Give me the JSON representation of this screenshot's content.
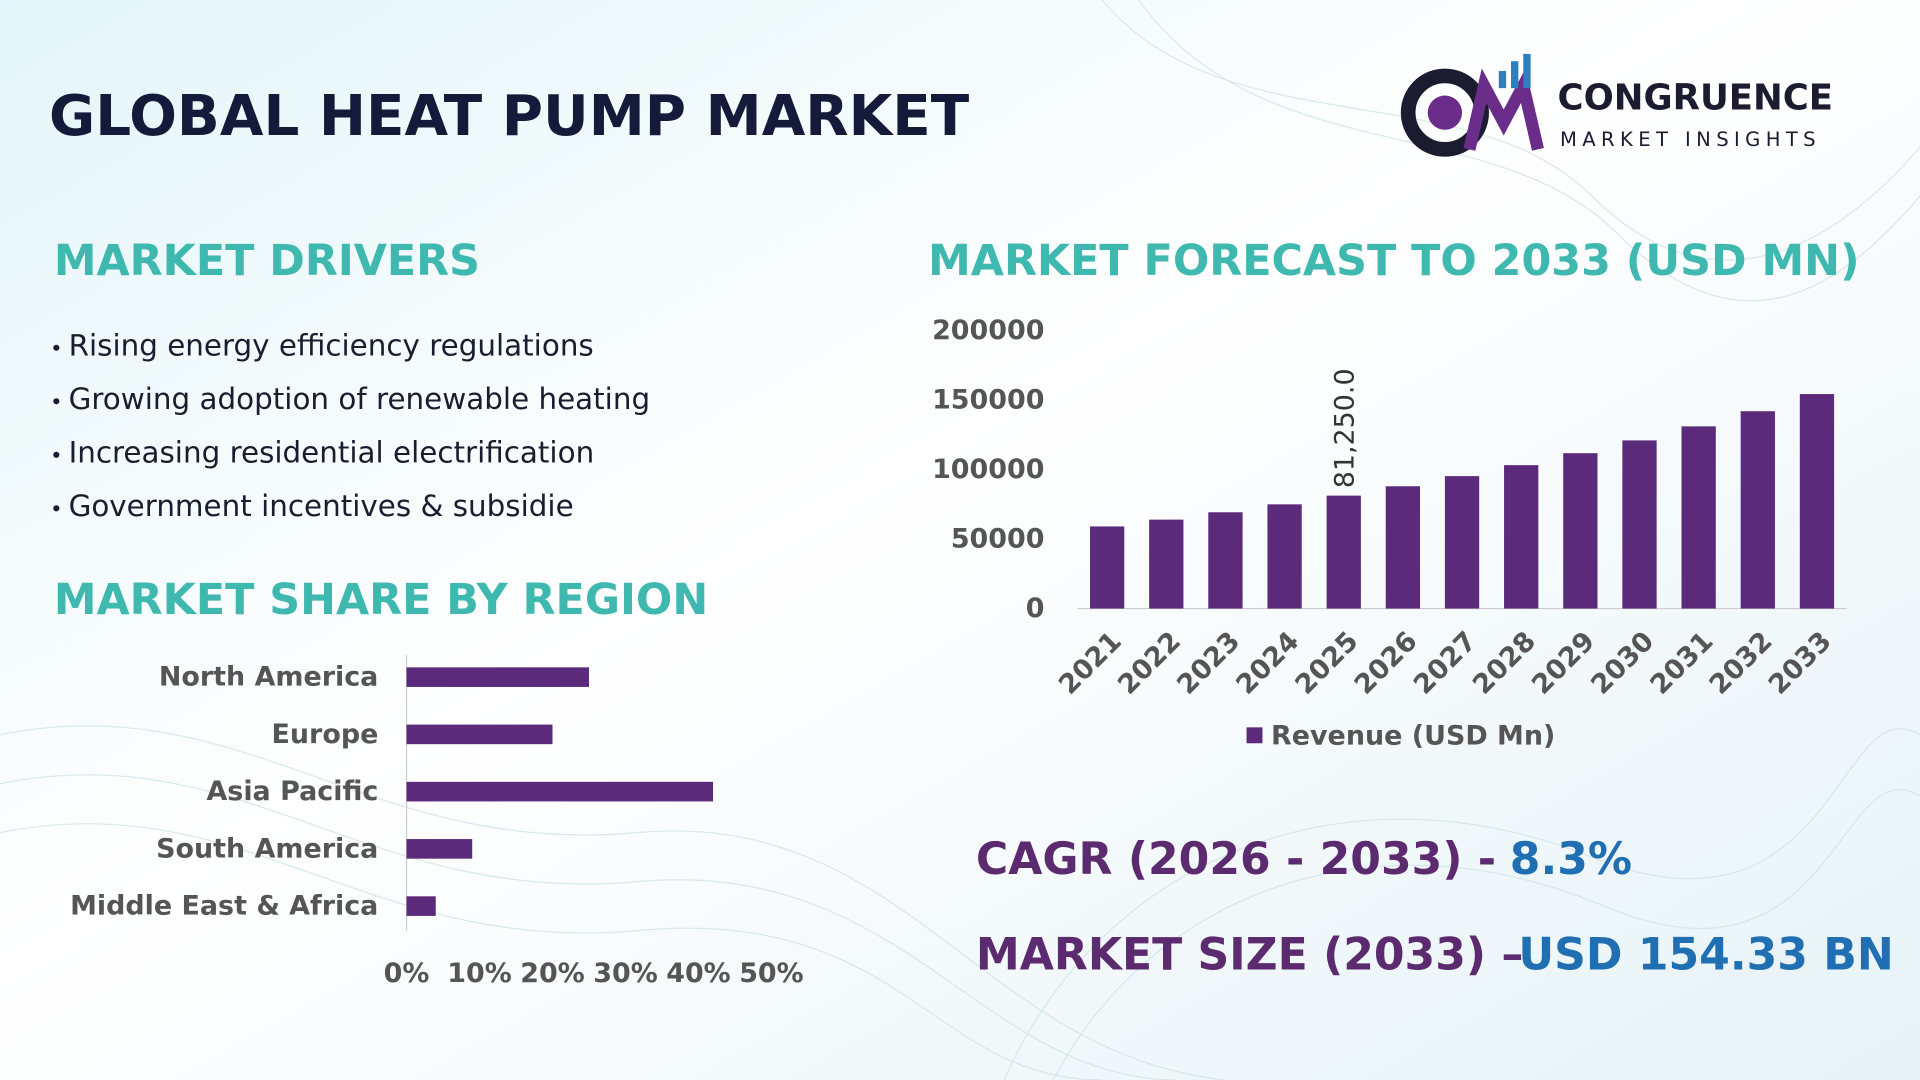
{
  "header": {
    "title": "GLOBAL HEAT PUMP MARKET",
    "logo": {
      "name": "CONGRUENCE",
      "tagline": "MARKET INSIGHTS"
    }
  },
  "drivers": {
    "title": "MARKET DRIVERS",
    "items": [
      "Rising energy efficiency regulations",
      "Growing adoption of renewable heating",
      "Increasing residential electrification",
      "Government incentives & subsidie"
    ]
  },
  "chart_data": [
    {
      "type": "bar",
      "orientation": "horizontal",
      "title": "MARKET SHARE BY REGION",
      "categories": [
        "North America",
        "Europe",
        "Asia Pacific",
        "South America",
        "Middle East & Africa"
      ],
      "values": [
        25,
        20,
        42,
        9,
        4
      ],
      "color": "#5b2a7a",
      "xlim": [
        0,
        50
      ],
      "xticks": [
        {
          "value": 0,
          "label": "0%"
        },
        {
          "value": 10,
          "label": "10%"
        },
        {
          "value": 20,
          "label": "20%"
        },
        {
          "value": 30,
          "label": "30%"
        },
        {
          "value": 40,
          "label": "40%"
        },
        {
          "value": 50,
          "label": "50%"
        }
      ]
    },
    {
      "type": "bar",
      "orientation": "vertical",
      "title": "MARKET FORECAST TO 2033 (USD MN)",
      "categories": [
        "2021",
        "2022",
        "2023",
        "2024",
        "2025",
        "2026",
        "2027",
        "2028",
        "2029",
        "2030",
        "2031",
        "2032",
        "2033"
      ],
      "series": [
        {
          "name": "Revenue (USD Mn)",
          "color": "#5b2a7a",
          "values": [
            59100,
            64000,
            69300,
            75000,
            81250,
            88000,
            95300,
            103200,
            111800,
            121000,
            131100,
            142000,
            154330
          ],
          "value_labels": [
            null,
            null,
            null,
            null,
            "81,250.0",
            null,
            null,
            null,
            null,
            null,
            null,
            null,
            null
          ]
        }
      ],
      "ylim": [
        0,
        200000
      ],
      "yticks": [
        0,
        50000,
        100000,
        150000,
        200000
      ],
      "legend": "bottom"
    }
  ],
  "highlights": [
    {
      "label": "CAGR (2026 - 2033) -",
      "value": "8.3%"
    },
    {
      "label": "MARKET SIZE (2033) –",
      "value": "USD 154.33 BN"
    }
  ]
}
